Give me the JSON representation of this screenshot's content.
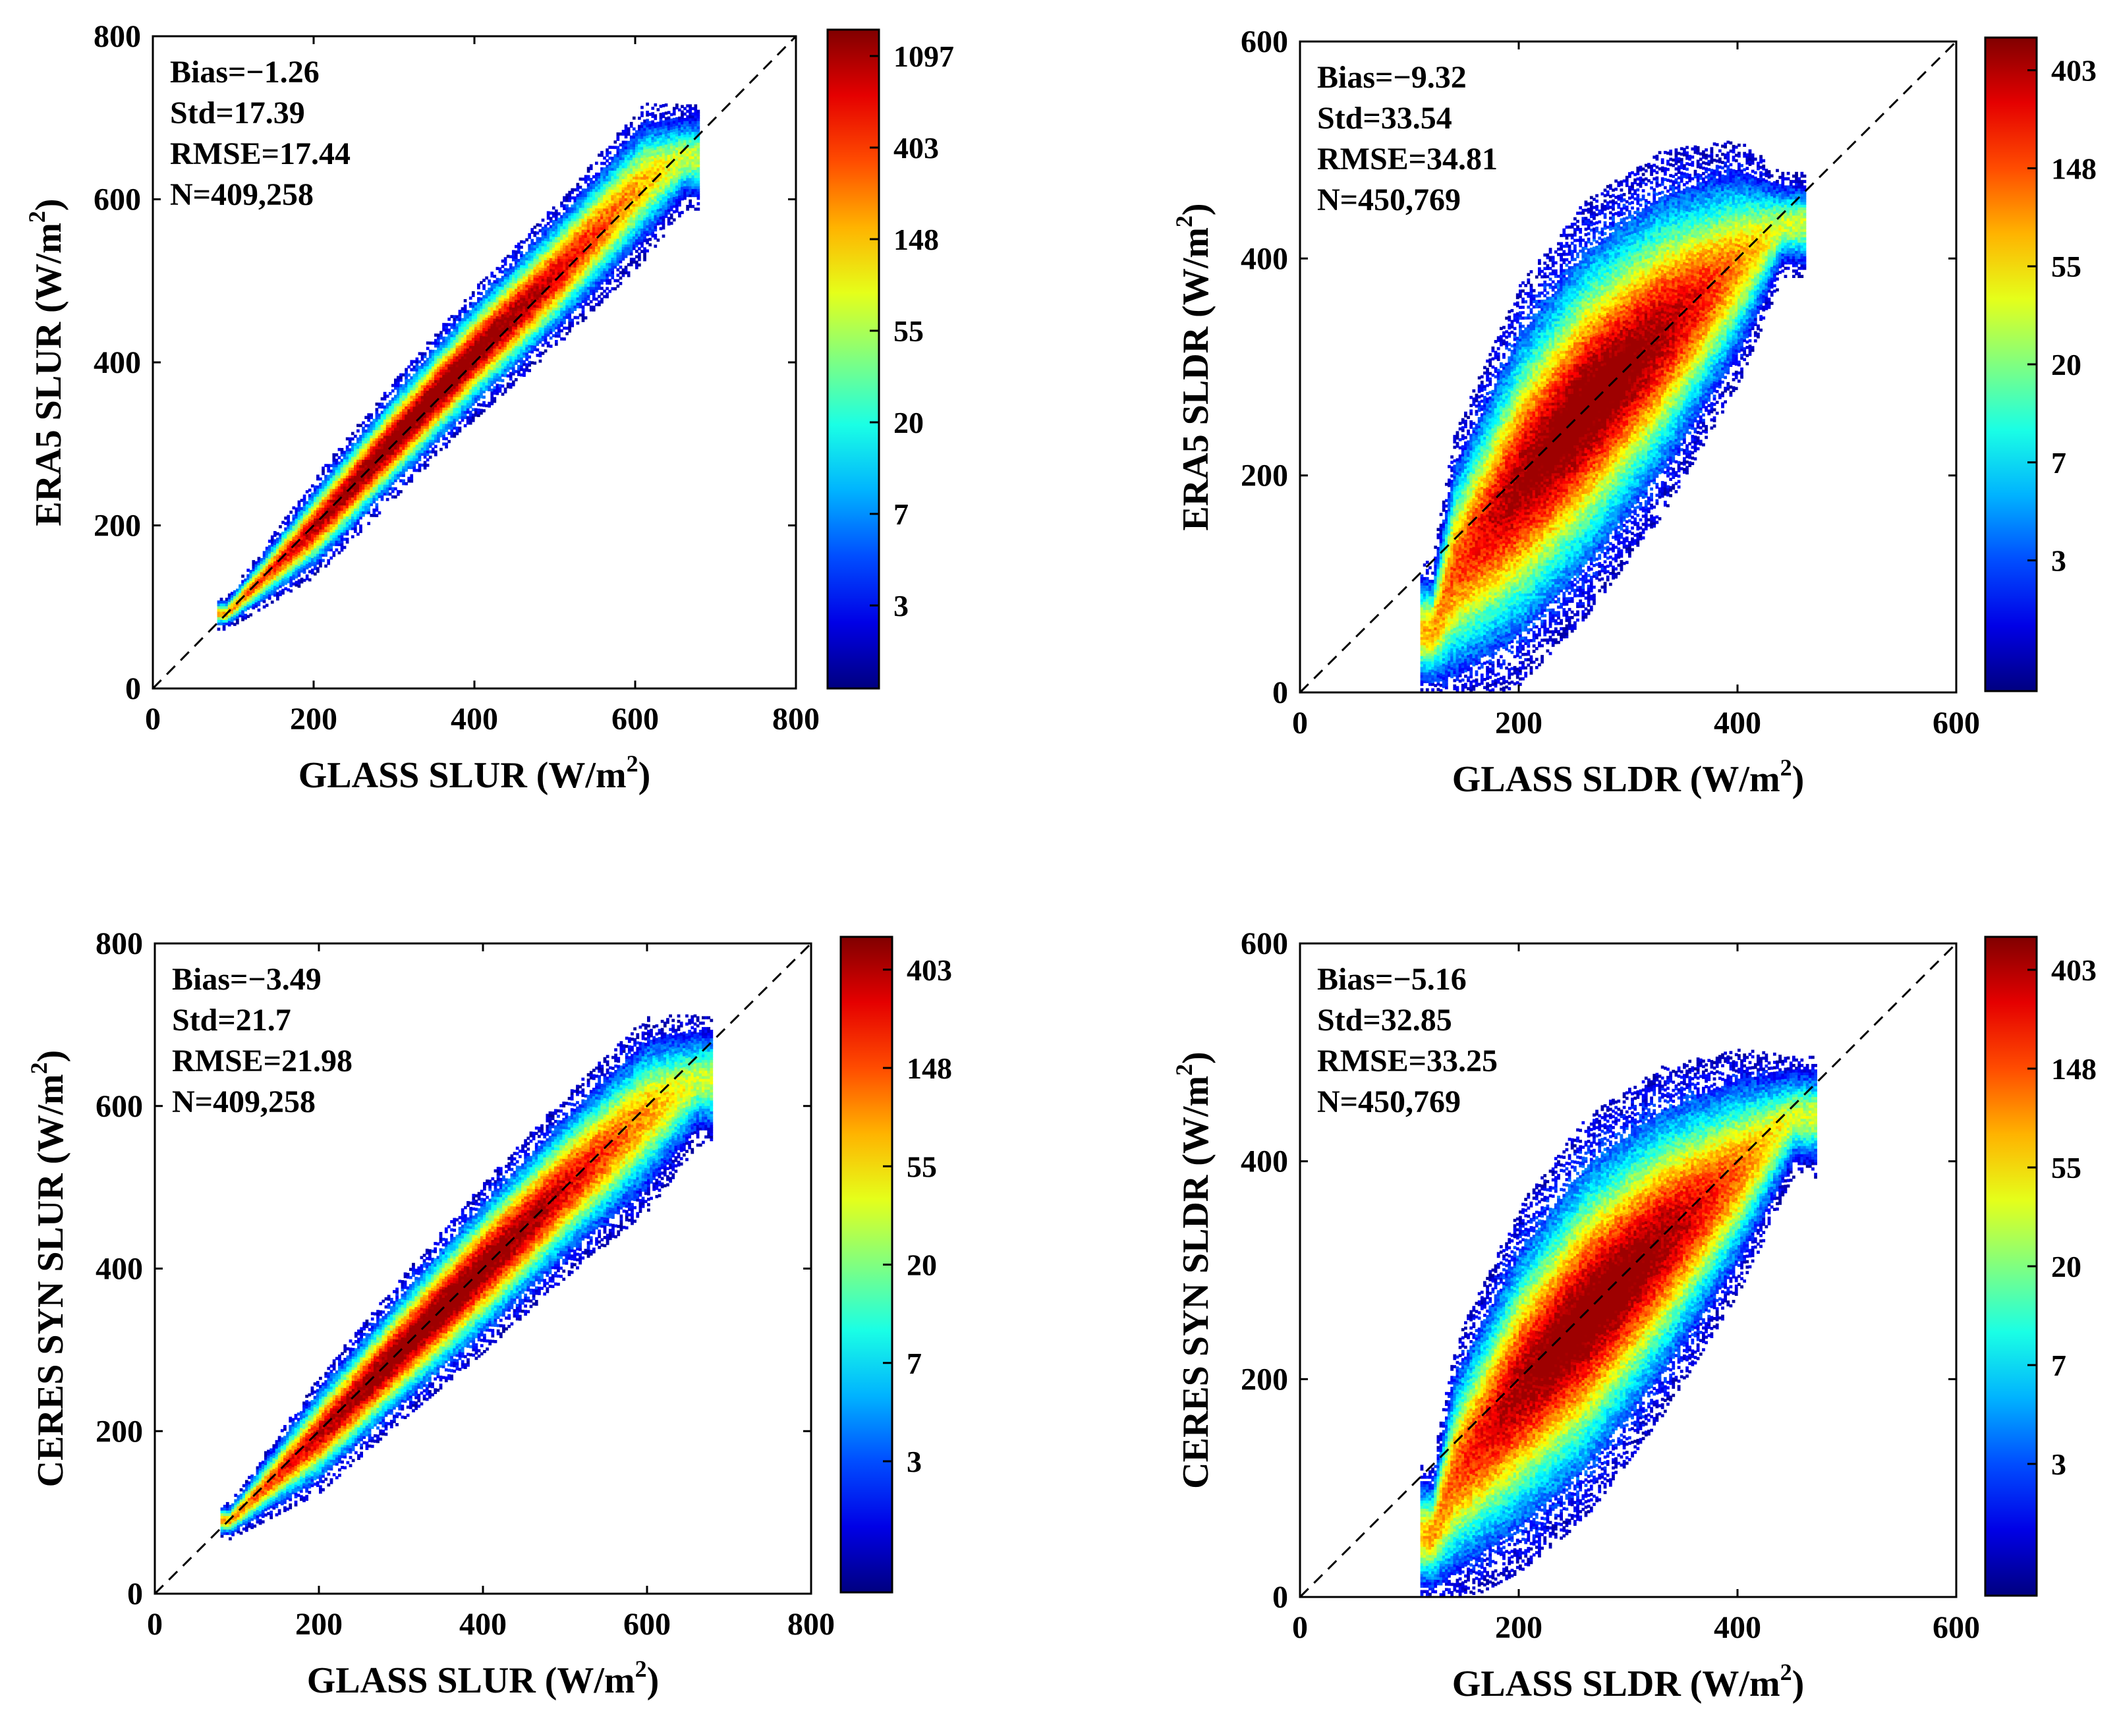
{
  "chart_data": [
    {
      "type": "scatter",
      "subtype": "density-scatter",
      "title": "",
      "xlabel": "GLASS SLUR (W/m",
      "ylabel": "ERA5 SLUR (W/m",
      "unit_sup": "2",
      "unit_close": ")",
      "xlim": [
        0,
        800
      ],
      "ylim": [
        0,
        800
      ],
      "xticks": [
        "0",
        "200",
        "400",
        "600",
        "800"
      ],
      "yticks": [
        "0",
        "200",
        "400",
        "600",
        "800"
      ],
      "stats": [
        "Bias=−1.26",
        "Std=17.39",
        "RMSE=17.44",
        "N=409,258"
      ],
      "colorbar": {
        "scale": "log",
        "ticks": [
          "1097",
          "403",
          "148",
          "55",
          "20",
          "7",
          "3"
        ]
      },
      "density_ridge": [
        [
          90,
          90
        ],
        [
          200,
          196
        ],
        [
          300,
          305
        ],
        [
          400,
          410
        ],
        [
          500,
          505
        ],
        [
          610,
          620
        ],
        [
          660,
          650
        ]
      ],
      "spread_y": [
        12,
        38,
        45,
        50,
        55,
        60,
        40
      ],
      "one_to_one": true
    },
    {
      "type": "scatter",
      "subtype": "density-scatter",
      "title": "",
      "xlabel": "GLASS SLDR (W/m",
      "ylabel": "ERA5 SLDR (W/m",
      "unit_sup": "2",
      "unit_close": ")",
      "xlim": [
        0,
        600
      ],
      "ylim": [
        0,
        600
      ],
      "xticks": [
        "0",
        "200",
        "400",
        "600"
      ],
      "yticks": [
        "0",
        "200",
        "400",
        "600"
      ],
      "stats": [
        "Bias=−9.32",
        "Std=33.54",
        "RMSE=34.81",
        "N=450,769"
      ],
      "colorbar": {
        "scale": "log",
        "ticks": [
          "403",
          "148",
          "55",
          "20",
          "7",
          "3"
        ]
      },
      "density_ridge": [
        [
          120,
          55
        ],
        [
          140,
          110
        ],
        [
          200,
          190
        ],
        [
          260,
          260
        ],
        [
          330,
          330
        ],
        [
          400,
          395
        ],
        [
          440,
          430
        ]
      ],
      "spread_y": [
        40,
        80,
        115,
        120,
        105,
        70,
        30
      ],
      "one_to_one": true
    },
    {
      "type": "scatter",
      "subtype": "density-scatter",
      "title": "",
      "xlabel": "GLASS SLUR (W/m",
      "ylabel": "CERES SYN SLUR (W/m",
      "unit_sup": "2",
      "unit_close": ")",
      "xlim": [
        0,
        800
      ],
      "ylim": [
        0,
        800
      ],
      "xticks": [
        "0",
        "200",
        "400",
        "600",
        "800"
      ],
      "yticks": [
        "0",
        "200",
        "400",
        "600",
        "800"
      ],
      "stats": [
        "Bias=−3.49",
        "Std=21.7",
        "RMSE=21.98",
        "N=409,258"
      ],
      "colorbar": {
        "scale": "log",
        "ticks": [
          "403",
          "148",
          "55",
          "20",
          "7",
          "3"
        ]
      },
      "density_ridge": [
        [
          90,
          88
        ],
        [
          200,
          195
        ],
        [
          300,
          300
        ],
        [
          400,
          400
        ],
        [
          500,
          500
        ],
        [
          600,
          590
        ],
        [
          660,
          630
        ]
      ],
      "spread_y": [
        14,
        45,
        55,
        65,
        70,
        75,
        50
      ],
      "one_to_one": true
    },
    {
      "type": "scatter",
      "subtype": "density-scatter",
      "title": "",
      "xlabel": "GLASS SLDR (W/m",
      "ylabel": "CERES SYN SLDR (W/m",
      "unit_sup": "2",
      "unit_close": ")",
      "xlim": [
        0,
        600
      ],
      "ylim": [
        0,
        600
      ],
      "xticks": [
        "0",
        "200",
        "400",
        "600"
      ],
      "yticks": [
        "0",
        "200",
        "400",
        "600"
      ],
      "stats": [
        "Bias=−5.16",
        "Std=32.85",
        "RMSE=33.25",
        "N=450,769"
      ],
      "colorbar": {
        "scale": "log",
        "ticks": [
          "403",
          "148",
          "55",
          "20",
          "7",
          "3"
        ]
      },
      "density_ridge": [
        [
          120,
          55
        ],
        [
          140,
          110
        ],
        [
          200,
          190
        ],
        [
          260,
          255
        ],
        [
          330,
          325
        ],
        [
          400,
          390
        ],
        [
          450,
          440
        ]
      ],
      "spread_y": [
        40,
        75,
        105,
        115,
        100,
        70,
        35
      ],
      "one_to_one": true
    }
  ]
}
